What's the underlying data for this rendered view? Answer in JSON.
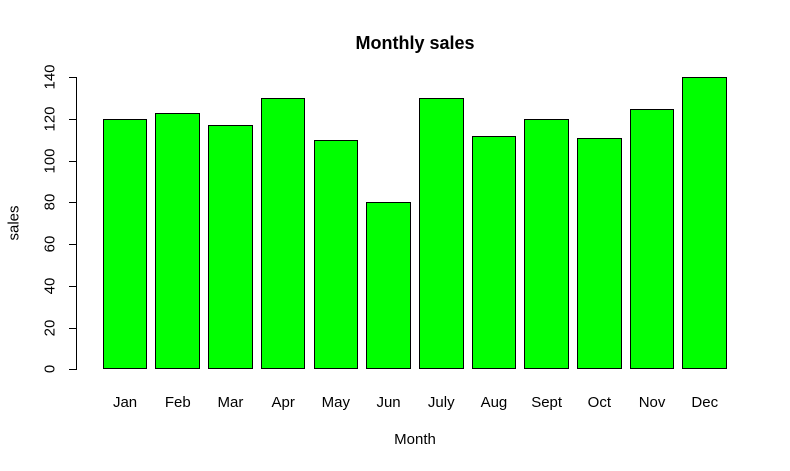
{
  "chart_data": {
    "type": "bar",
    "title": "Monthly sales",
    "xlabel": "Month",
    "ylabel": "sales",
    "categories": [
      "Jan",
      "Feb",
      "Mar",
      "Apr",
      "May",
      "Jun",
      "July",
      "Aug",
      "Sept",
      "Oct",
      "Nov",
      "Dec"
    ],
    "values": [
      120,
      123,
      117,
      130,
      110,
      80,
      130,
      112,
      120,
      111,
      125,
      140
    ],
    "ylim": [
      0,
      140
    ],
    "yticks": [
      0,
      20,
      40,
      60,
      80,
      100,
      120,
      140
    ],
    "bar_color": "#00FF00",
    "bar_border_color": "#000000",
    "background_color": "#FFFFFF",
    "grid": false,
    "legend": "none",
    "x_axis_line": false,
    "y_tick_label_rotation": 90
  }
}
